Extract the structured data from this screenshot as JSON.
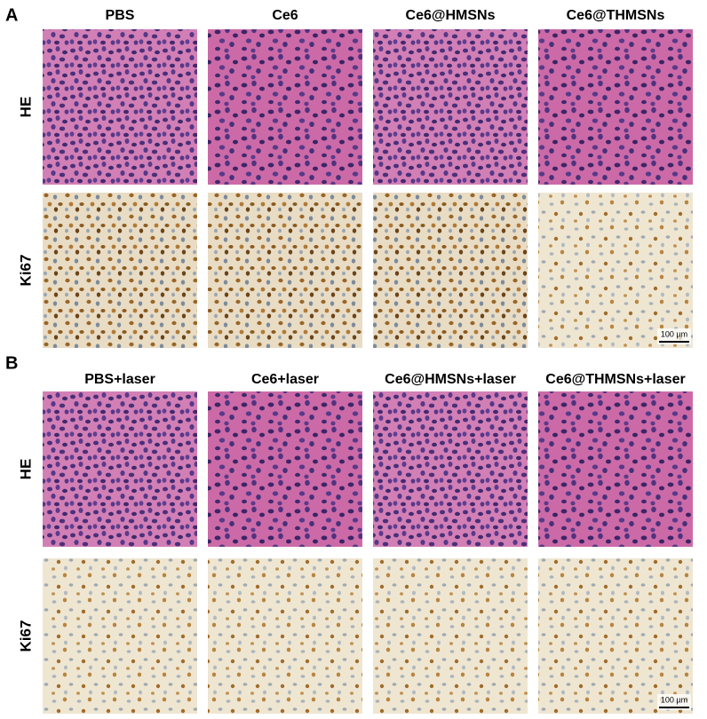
{
  "panels": [
    {
      "label": "A",
      "columns": [
        "PBS",
        "Ce6",
        "Ce6@HMSNs",
        "Ce6@THMSNs"
      ],
      "rows": [
        "HE",
        "Ki67"
      ],
      "scale_bar": "100 µm"
    },
    {
      "label": "B",
      "columns": [
        "PBS+laser",
        "Ce6+laser",
        "Ce6@HMSNs+laser",
        "Ce6@THMSNs+laser"
      ],
      "rows": [
        "HE",
        "Ki67"
      ],
      "scale_bar": "100 µm"
    }
  ]
}
